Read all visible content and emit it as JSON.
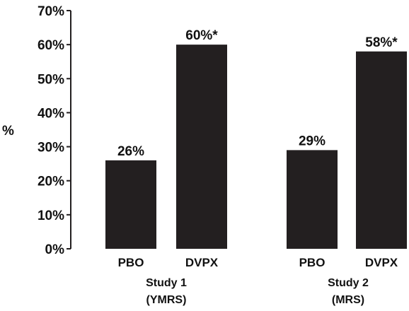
{
  "chart_data": {
    "type": "bar",
    "title": "",
    "xlabel": "",
    "ylabel": "%",
    "ylim": [
      0,
      70
    ],
    "yticks": [
      0,
      10,
      20,
      30,
      40,
      50,
      60,
      70
    ],
    "ytick_labels": [
      "0%",
      "10%",
      "20%",
      "30%",
      "40%",
      "50%",
      "60%",
      "70%"
    ],
    "grid": false,
    "legend": "none",
    "bar_color": "#231f20",
    "axis_color": "#231f20",
    "groups": [
      {
        "label_line1": "Study 1",
        "label_line2": "(YMRS)",
        "categories": [
          "PBO",
          "DVPX"
        ],
        "values": [
          26,
          60
        ],
        "data_labels": [
          "26%",
          "60%*"
        ]
      },
      {
        "label_line1": "Study 2",
        "label_line2": "(MRS)",
        "categories": [
          "PBO",
          "DVPX"
        ],
        "values": [
          29,
          58
        ],
        "data_labels": [
          "29%",
          "58%*"
        ]
      }
    ]
  }
}
